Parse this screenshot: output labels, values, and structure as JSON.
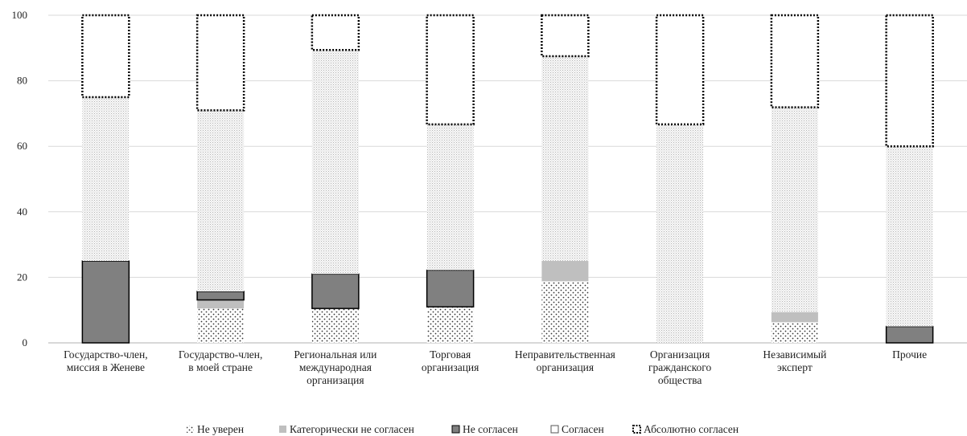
{
  "chart_data": {
    "type": "bar",
    "stacked": true,
    "title": "",
    "xlabel": "",
    "ylabel": "",
    "ylim": [
      0,
      100
    ],
    "yticks": [
      0,
      20,
      40,
      60,
      80,
      100
    ],
    "grid": true,
    "legend_position": "bottom",
    "categories": [
      [
        "Государство-член,",
        "миссия в Женеве"
      ],
      [
        "Государство-член,",
        "в моей стране"
      ],
      [
        "Региональная или",
        "международная",
        "организация"
      ],
      [
        "Торговая",
        "организация"
      ],
      [
        "Неправительственная",
        "организация"
      ],
      [
        "Организация",
        "гражданского",
        "общества"
      ],
      [
        "Независимый",
        "эксперт"
      ],
      [
        "Прочие"
      ]
    ],
    "series": [
      {
        "name": "Не уверен",
        "values": [
          0,
          10.5,
          10.5,
          11,
          18.8,
          0,
          6.3,
          0
        ],
        "color": "#ffffff",
        "pattern": "dots"
      },
      {
        "name": "Категорически не согласен",
        "values": [
          0,
          2.6,
          0,
          0,
          6.2,
          0,
          3.1,
          0
        ],
        "color": "#bfbfbf",
        "pattern": "solid"
      },
      {
        "name": "Не согласен",
        "values": [
          25,
          2.6,
          10.5,
          11.2,
          0,
          0,
          0,
          5
        ],
        "color": "#808080",
        "pattern": "solid"
      },
      {
        "name": "Согласен",
        "values": [
          50,
          55.3,
          68.4,
          44.5,
          62.5,
          66.7,
          62.5,
          55
        ],
        "color": "#f2f2f2",
        "pattern": "fine"
      },
      {
        "name": "Абсолютно согласен",
        "values": [
          25,
          29,
          10.6,
          33.3,
          12.5,
          33.3,
          28.1,
          40
        ],
        "color": "#ffffff",
        "pattern": "dotted-border"
      }
    ]
  }
}
